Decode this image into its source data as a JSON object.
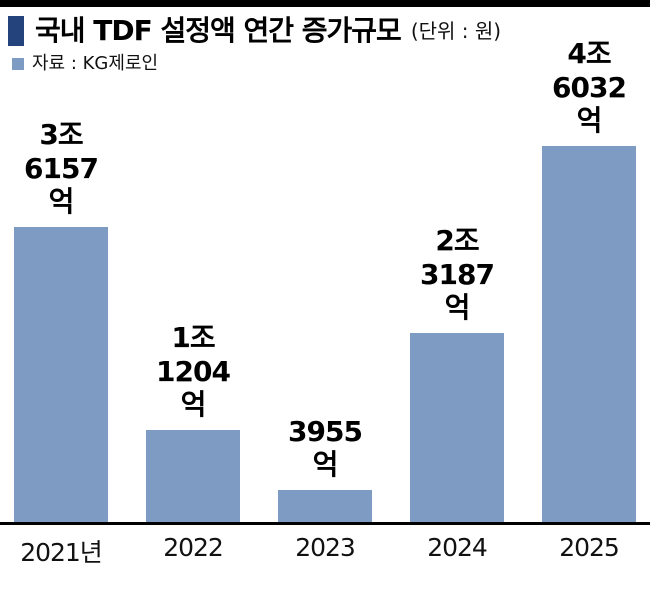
{
  "header": {
    "title": "국내 TDF 설정액 연간 증가규모",
    "unit": "(단위 : 원)",
    "source": "자료 : KG제로인"
  },
  "colors": {
    "bar": "#7e9bc4",
    "title_bullet": "#24427c",
    "source_bullet": "#7e9bc4",
    "axis_line": "#000000"
  },
  "chart_data": {
    "type": "bar",
    "title": "국내 TDF 설정액 연간 증가규모",
    "unit_label": "(단위 : 원)",
    "source": "자료 : KG제로인",
    "categories": [
      "2021년",
      "2022",
      "2023",
      "2024",
      "2025"
    ],
    "values": [
      36157,
      11204,
      3955,
      23187,
      46032
    ],
    "values_unit": "억",
    "ylim": [
      0,
      46032
    ],
    "grid": false,
    "legend": false,
    "bars": [
      {
        "year_label": "2021년",
        "value_label": "3조\n6157억",
        "value": 36157
      },
      {
        "year_label": "2022",
        "value_label": "1조\n1204억",
        "value": 11204
      },
      {
        "year_label": "2023",
        "value_label": "3955억",
        "value": 3955
      },
      {
        "year_label": "2024",
        "value_label": "2조\n3187억",
        "value": 23187
      },
      {
        "year_label": "2025",
        "value_label": "4조\n6032억",
        "value": 46032
      }
    ]
  }
}
